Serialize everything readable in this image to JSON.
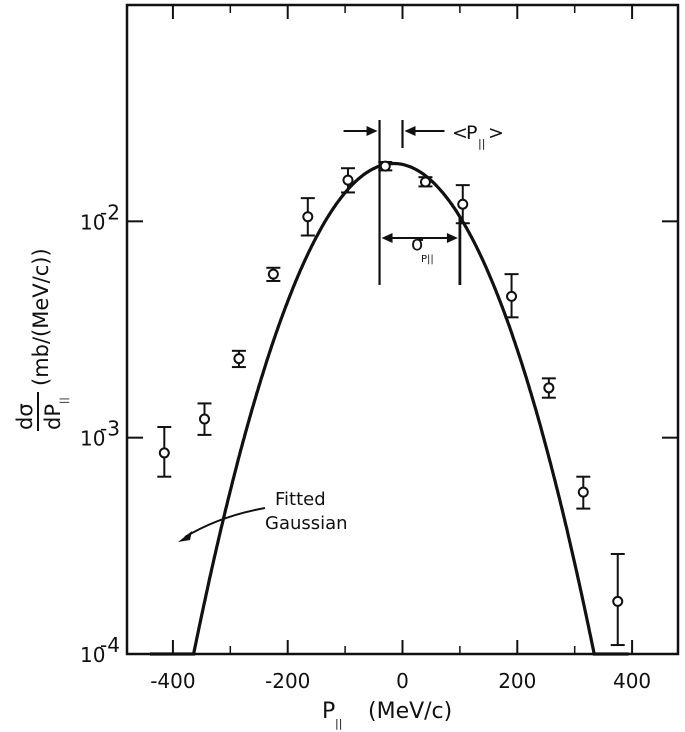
{
  "chart_data": {
    "type": "scatter",
    "title": "",
    "xlabel": {
      "main": "P",
      "sub": "||",
      "unit": "(MeV/c)"
    },
    "ylabel": {
      "numerator": "dσ",
      "denominator": "dP",
      "denominator_sub": "||",
      "unit": "(mb/(MeV/c))"
    },
    "xlim": [
      -480,
      480
    ],
    "ylim": [
      0.0001,
      0.1
    ],
    "y_scale": "log",
    "grid": false,
    "x_ticks": [
      -400,
      -200,
      0,
      200,
      400
    ],
    "x_tick_labels": [
      "-400",
      "-200",
      "0",
      "200",
      "400"
    ],
    "y_ticks": [
      0.0001,
      0.001,
      0.01
    ],
    "y_tick_labels": [
      {
        "base": "10",
        "exp": "-4"
      },
      {
        "base": "10",
        "exp": "-3"
      },
      {
        "base": "10",
        "exp": "-2"
      }
    ],
    "series": [
      {
        "points": [
          {
            "x": -415,
            "y": 0.00085,
            "ylo": 0.00066,
            "yhi": 0.00112
          },
          {
            "x": -345,
            "y": 0.00122,
            "ylo": 0.00103,
            "yhi": 0.00144
          },
          {
            "x": -285,
            "y": 0.00232,
            "ylo": 0.00212,
            "yhi": 0.00252
          },
          {
            "x": -225,
            "y": 0.0057,
            "ylo": 0.0053,
            "yhi": 0.0061
          },
          {
            "x": -165,
            "y": 0.0105,
            "ylo": 0.0086,
            "yhi": 0.0128
          },
          {
            "x": -95,
            "y": 0.0155,
            "ylo": 0.0136,
            "yhi": 0.0176
          },
          {
            "x": -30,
            "y": 0.018,
            "ylo": 0.0172,
            "yhi": 0.0188
          },
          {
            "x": 40,
            "y": 0.0152,
            "ylo": 0.0145,
            "yhi": 0.016
          },
          {
            "x": 105,
            "y": 0.012,
            "ylo": 0.0098,
            "yhi": 0.0147
          },
          {
            "x": 190,
            "y": 0.0045,
            "ylo": 0.0036,
            "yhi": 0.0057
          },
          {
            "x": 255,
            "y": 0.0017,
            "ylo": 0.00153,
            "yhi": 0.00188
          },
          {
            "x": 315,
            "y": 0.00056,
            "ylo": 0.00047,
            "yhi": 0.00066
          },
          {
            "x": 375,
            "y": 0.000175,
            "ylo": 0.00011,
            "yhi": 0.00029
          }
        ]
      }
    ],
    "fit": {
      "function": "gaussian",
      "mean": -15,
      "sigma": 108,
      "peak": 0.0185,
      "x_range": [
        -440,
        395
      ]
    },
    "annotations": {
      "fit_label_line1": "Fitted",
      "fit_label_line2": "Gaussian",
      "mean_label": "<P||>",
      "mean_label_open": "<",
      "mean_label_main": "P",
      "mean_label_sub": "||",
      "mean_label_close": ">",
      "sigma_label_main": "σ",
      "sigma_label_sub": "P||",
      "mean_marker_x": [
        -40,
        0
      ],
      "sigma_marker_x": [
        -40,
        100
      ]
    }
  }
}
